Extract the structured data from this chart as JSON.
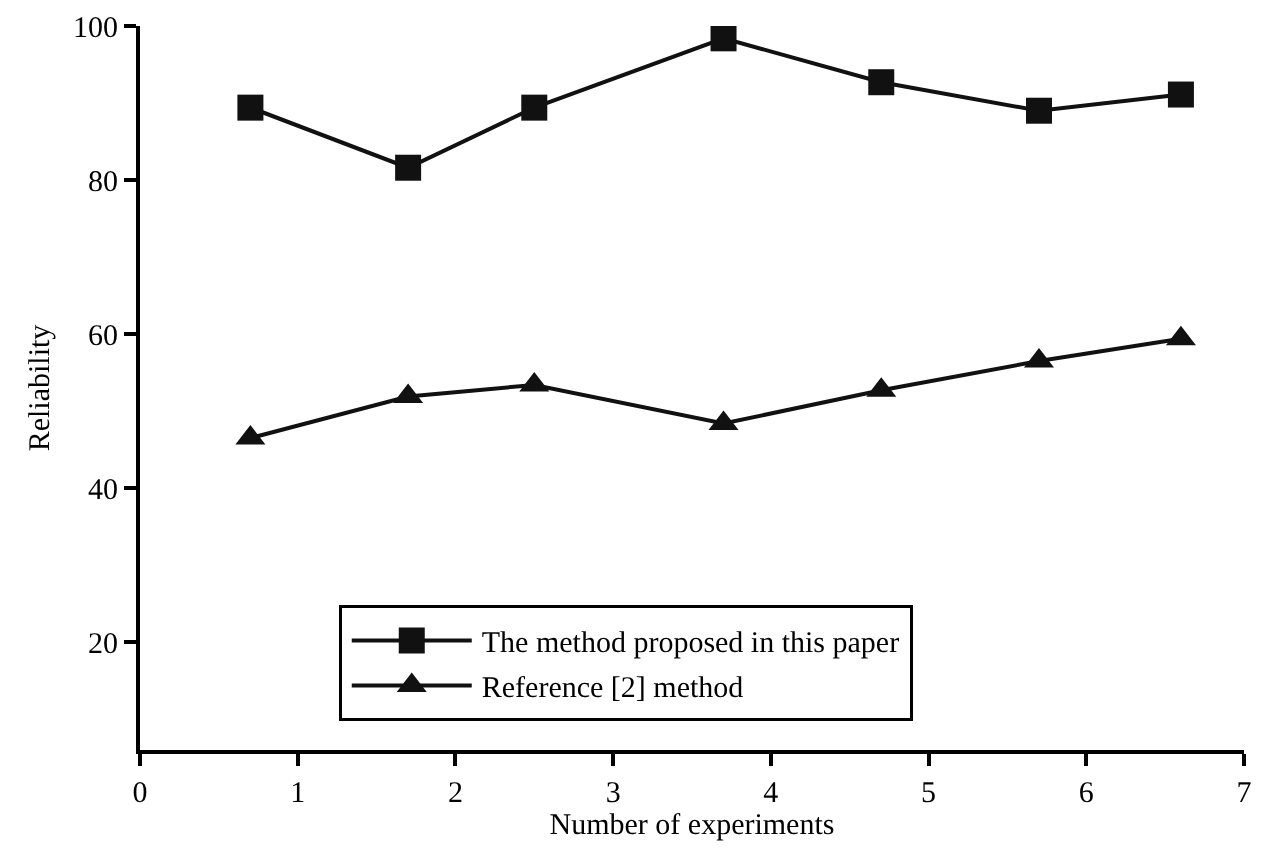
{
  "chart_data": {
    "type": "line",
    "xlabel": "Number of experiments",
    "ylabel": "Reliability",
    "xlim": [
      0,
      7
    ],
    "xticks": [
      0,
      1,
      2,
      3,
      4,
      5,
      6,
      7
    ],
    "ylim": [
      6,
      100
    ],
    "yticks": [
      20,
      40,
      60,
      80,
      100
    ],
    "legend": "bottom",
    "series": [
      {
        "name": "The method proposed in this paper",
        "color": "#111111",
        "marker": "square",
        "x": [
          0.7,
          1.7,
          2.5,
          3.7,
          4.7,
          5.7,
          6.6
        ],
        "values": [
          89.4,
          81.6,
          89.4,
          98.4,
          92.7,
          89.0,
          91.1
        ]
      },
      {
        "name": "Reference [2] method",
        "color": "#111111",
        "marker": "triangle",
        "x": [
          0.7,
          1.7,
          2.5,
          3.7,
          4.7,
          5.7,
          6.6
        ],
        "values": [
          46.5,
          51.9,
          53.4,
          48.4,
          52.7,
          56.5,
          59.4
        ]
      }
    ]
  }
}
